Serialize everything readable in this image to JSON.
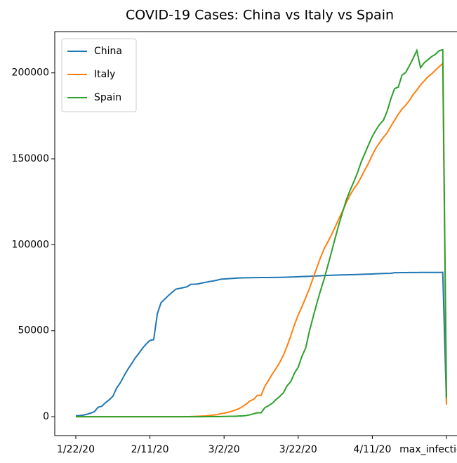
{
  "chart_data": {
    "type": "line",
    "title": "COVID-19 Cases: China vs Italy vs Spain",
    "categories": [
      "1/22/20",
      null,
      null,
      null,
      null,
      null,
      null,
      null,
      null,
      null,
      null,
      null,
      null,
      null,
      null,
      null,
      null,
      null,
      null,
      null,
      "2/11/20",
      null,
      null,
      null,
      null,
      null,
      null,
      null,
      null,
      null,
      null,
      null,
      null,
      null,
      null,
      null,
      null,
      null,
      null,
      null,
      "3/2/20",
      null,
      null,
      null,
      null,
      null,
      null,
      null,
      null,
      null,
      null,
      null,
      null,
      null,
      null,
      null,
      null,
      null,
      null,
      null,
      "3/22/20",
      null,
      null,
      null,
      null,
      null,
      null,
      null,
      null,
      null,
      null,
      null,
      null,
      null,
      null,
      null,
      null,
      null,
      null,
      null,
      "4/11/20",
      null,
      null,
      null,
      null,
      null,
      null,
      null,
      null,
      null,
      null,
      null,
      null,
      null,
      null,
      null,
      null,
      null,
      null,
      null,
      "max_infection_rate"
    ],
    "series": [
      {
        "name": "China",
        "color": "#1f77b4",
        "values": [
          548,
          643,
          920,
          1406,
          2075,
          2877,
          5509,
          6087,
          8141,
          9802,
          11891,
          16630,
          19716,
          23707,
          27440,
          30587,
          34110,
          36814,
          39829,
          42354,
          44386,
          44759,
          59895,
          66358,
          68413,
          70513,
          72434,
          74211,
          74619,
          75077,
          75550,
          77001,
          77022,
          77241,
          77754,
          78166,
          78600,
          78928,
          79356,
          79932,
          80136,
          80261,
          80386,
          80537,
          80690,
          80770,
          80823,
          80860,
          80887,
          80921,
          80932,
          80945,
          80977,
          81003,
          81033,
          81058,
          81102,
          81156,
          81250,
          81305,
          81435,
          81498,
          81591,
          81661,
          81782,
          81897,
          81999,
          82122,
          82198,
          82279,
          82361,
          82432,
          82511,
          82543,
          82602,
          82665,
          82718,
          82809,
          82883,
          82941,
          83014,
          83134,
          83213,
          83306,
          83356,
          83403,
          83760,
          83787,
          83805,
          83817,
          83853,
          83868,
          83884,
          83899,
          83909,
          83912,
          83918,
          83940,
          83944,
          83956,
          8000
        ]
      },
      {
        "name": "Italy",
        "color": "#ff7f0e",
        "values": [
          0,
          0,
          0,
          0,
          0,
          0,
          0,
          0,
          0,
          2,
          2,
          2,
          2,
          2,
          2,
          2,
          2,
          3,
          3,
          3,
          3,
          3,
          3,
          3,
          3,
          3,
          3,
          3,
          3,
          3,
          20,
          62,
          155,
          229,
          322,
          453,
          655,
          888,
          1128,
          1694,
          2036,
          2502,
          3089,
          3858,
          4636,
          5883,
          7375,
          9172,
          10149,
          12462,
          12462,
          17660,
          21157,
          24747,
          27980,
          31506,
          35713,
          41035,
          47021,
          53578,
          59138,
          63927,
          69176,
          74386,
          80589,
          86498,
          92472,
          97689,
          101739,
          105792,
          110574,
          115242,
          119827,
          124632,
          128948,
          132547,
          135586,
          139422,
          143626,
          147577,
          152271,
          156363,
          159516,
          162488,
          165155,
          168941,
          172434,
          175925,
          178972,
          181228,
          183957,
          187327,
          189973,
          192994,
          195351,
          197675,
          199414,
          201505,
          203591,
          205463,
          7000
        ]
      },
      {
        "name": "Spain",
        "color": "#2ca02c",
        "values": [
          0,
          0,
          0,
          0,
          0,
          0,
          0,
          0,
          0,
          1,
          1,
          1,
          1,
          1,
          1,
          1,
          1,
          1,
          2,
          2,
          2,
          2,
          2,
          2,
          2,
          2,
          2,
          2,
          2,
          2,
          2,
          2,
          2,
          2,
          6,
          13,
          15,
          32,
          45,
          84,
          120,
          165,
          222,
          259,
          400,
          500,
          673,
          1073,
          1695,
          2277,
          2277,
          5232,
          6391,
          7798,
          9942,
          11748,
          13910,
          17963,
          20410,
          25374,
          28768,
          35136,
          39885,
          49515,
          57786,
          65719,
          73235,
          80110,
          87956,
          95923,
          104118,
          112065,
          119199,
          126168,
          131646,
          136675,
          141942,
          148220,
          153222,
          158273,
          163027,
          166831,
          170099,
          172541,
          177644,
          184948,
          190839,
          191726,
          198674,
          200210,
          204178,
          208389,
          213024,
          202990,
          205905,
          207634,
          209465,
          210773,
          212917,
          213435,
          11000
        ]
      }
    ],
    "ylim": [
      -11000,
      224000
    ],
    "yticks": [
      0,
      50000,
      100000,
      150000,
      200000
    ],
    "legend": "upper left"
  }
}
